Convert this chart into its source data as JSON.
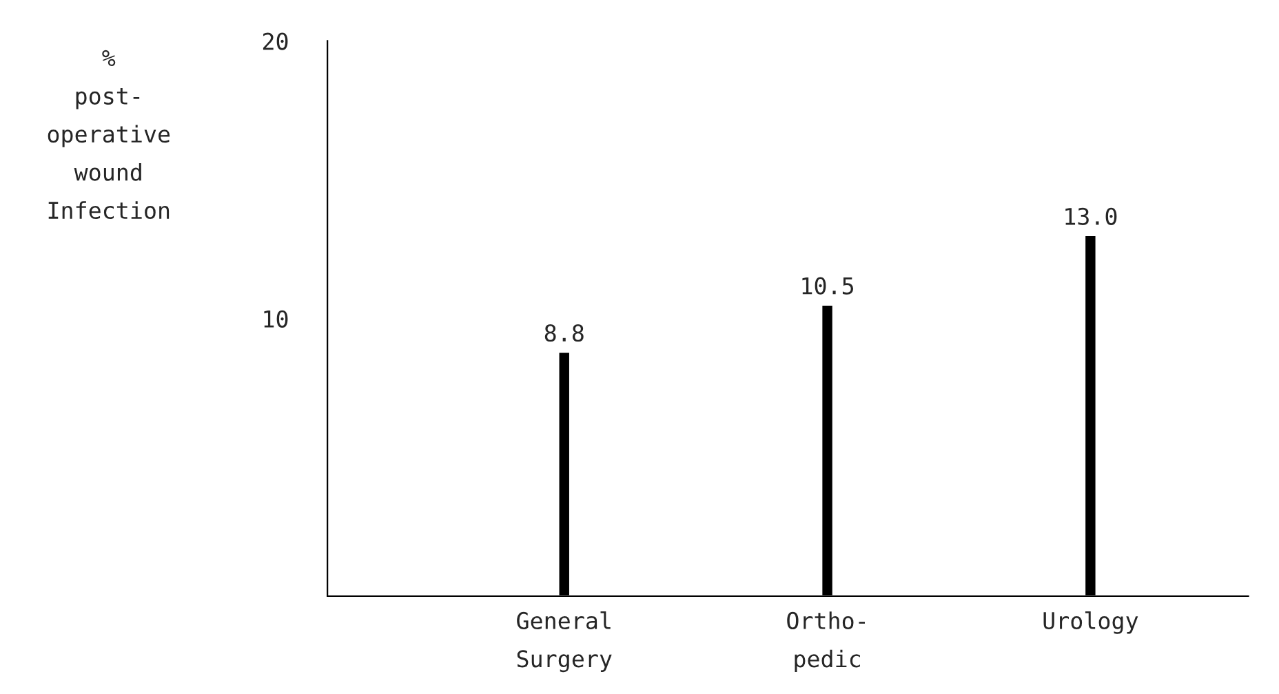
{
  "chart_data": {
    "type": "bar",
    "ylabel": "%\npost-\noperative\nwound\nInfection",
    "categories": [
      "General\nSurgery",
      "Ortho-\npedic",
      "Urology"
    ],
    "values": [
      8.8,
      10.5,
      13.0
    ],
    "value_labels": [
      "8.8",
      "10.5",
      "13.0"
    ],
    "color": "#000000",
    "ylim": [
      0,
      20
    ],
    "yticks": [
      10,
      20
    ],
    "grid": false,
    "legend": false
  }
}
